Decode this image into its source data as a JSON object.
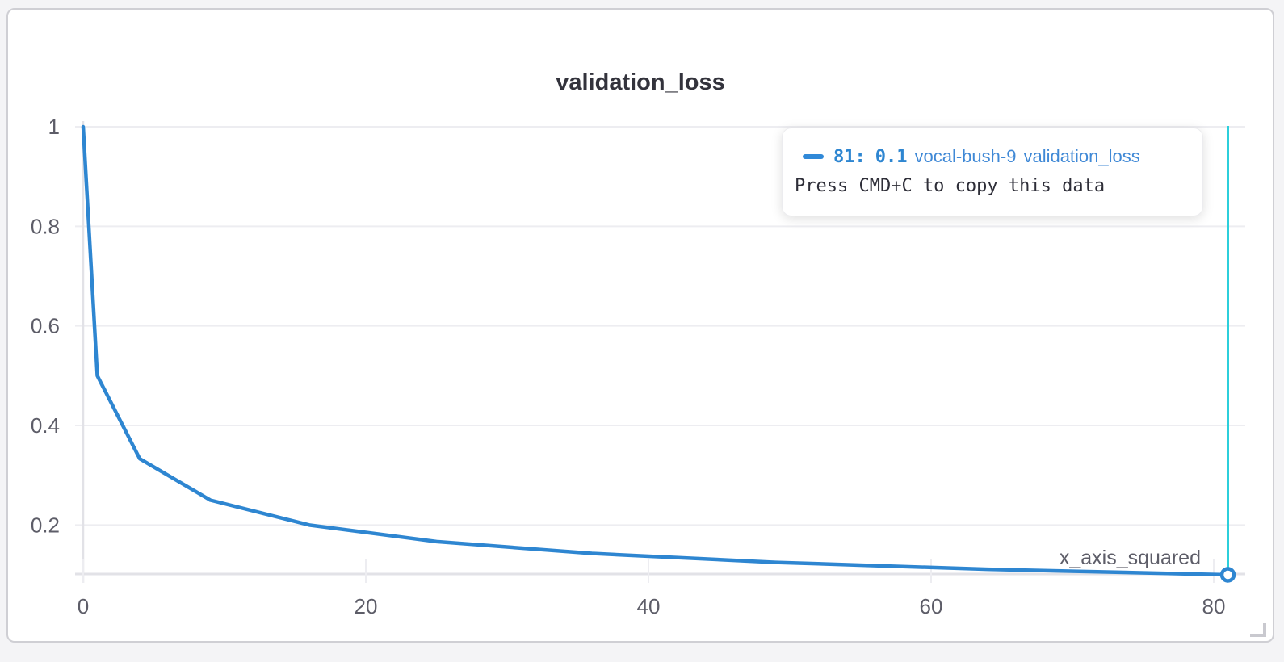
{
  "card": {
    "title": "validation_loss"
  },
  "tooltip": {
    "x_value_label": "81:",
    "y_value": "0.1",
    "run_name": "vocal-bush-9",
    "metric_name": "validation_loss",
    "hint": "Press CMD+C to copy this data",
    "swatch_color": "#3089d8"
  },
  "chart_data": {
    "type": "line",
    "title": "validation_loss",
    "xlabel": "x_axis_squared",
    "ylabel": "",
    "x": [
      0,
      1,
      4,
      9,
      16,
      25,
      36,
      49,
      64,
      81
    ],
    "series": [
      {
        "name": "vocal-bush-9 validation_loss",
        "values": [
          1,
          0.5,
          0.3333,
          0.25,
          0.2,
          0.1667,
          0.1429,
          0.125,
          0.1111,
          0.1
        ],
        "color": "#2e86d1"
      }
    ],
    "xticks": [
      "0",
      "20",
      "40",
      "60",
      "80"
    ],
    "xtick_values": [
      0,
      20,
      40,
      60,
      80
    ],
    "yticks": [
      "1",
      "0.8",
      "0.6",
      "0.4",
      "0.2"
    ],
    "ytick_values": [
      1,
      0.8,
      0.6,
      0.4,
      0.2
    ],
    "xlim": [
      0,
      82
    ],
    "ylim": [
      0.1,
      1
    ],
    "grid": "horizontal",
    "legend_position": "tooltip",
    "crosshair_x": 81,
    "highlighted_point": {
      "x": 81,
      "y": 0.1
    },
    "colors": {
      "line": "#2e86d1",
      "crosshair": "#2ccfdb",
      "grid": "#ededf1",
      "axis": "#e2e2e7",
      "tick_label": "#5d5d68",
      "title": "#33333c"
    }
  }
}
